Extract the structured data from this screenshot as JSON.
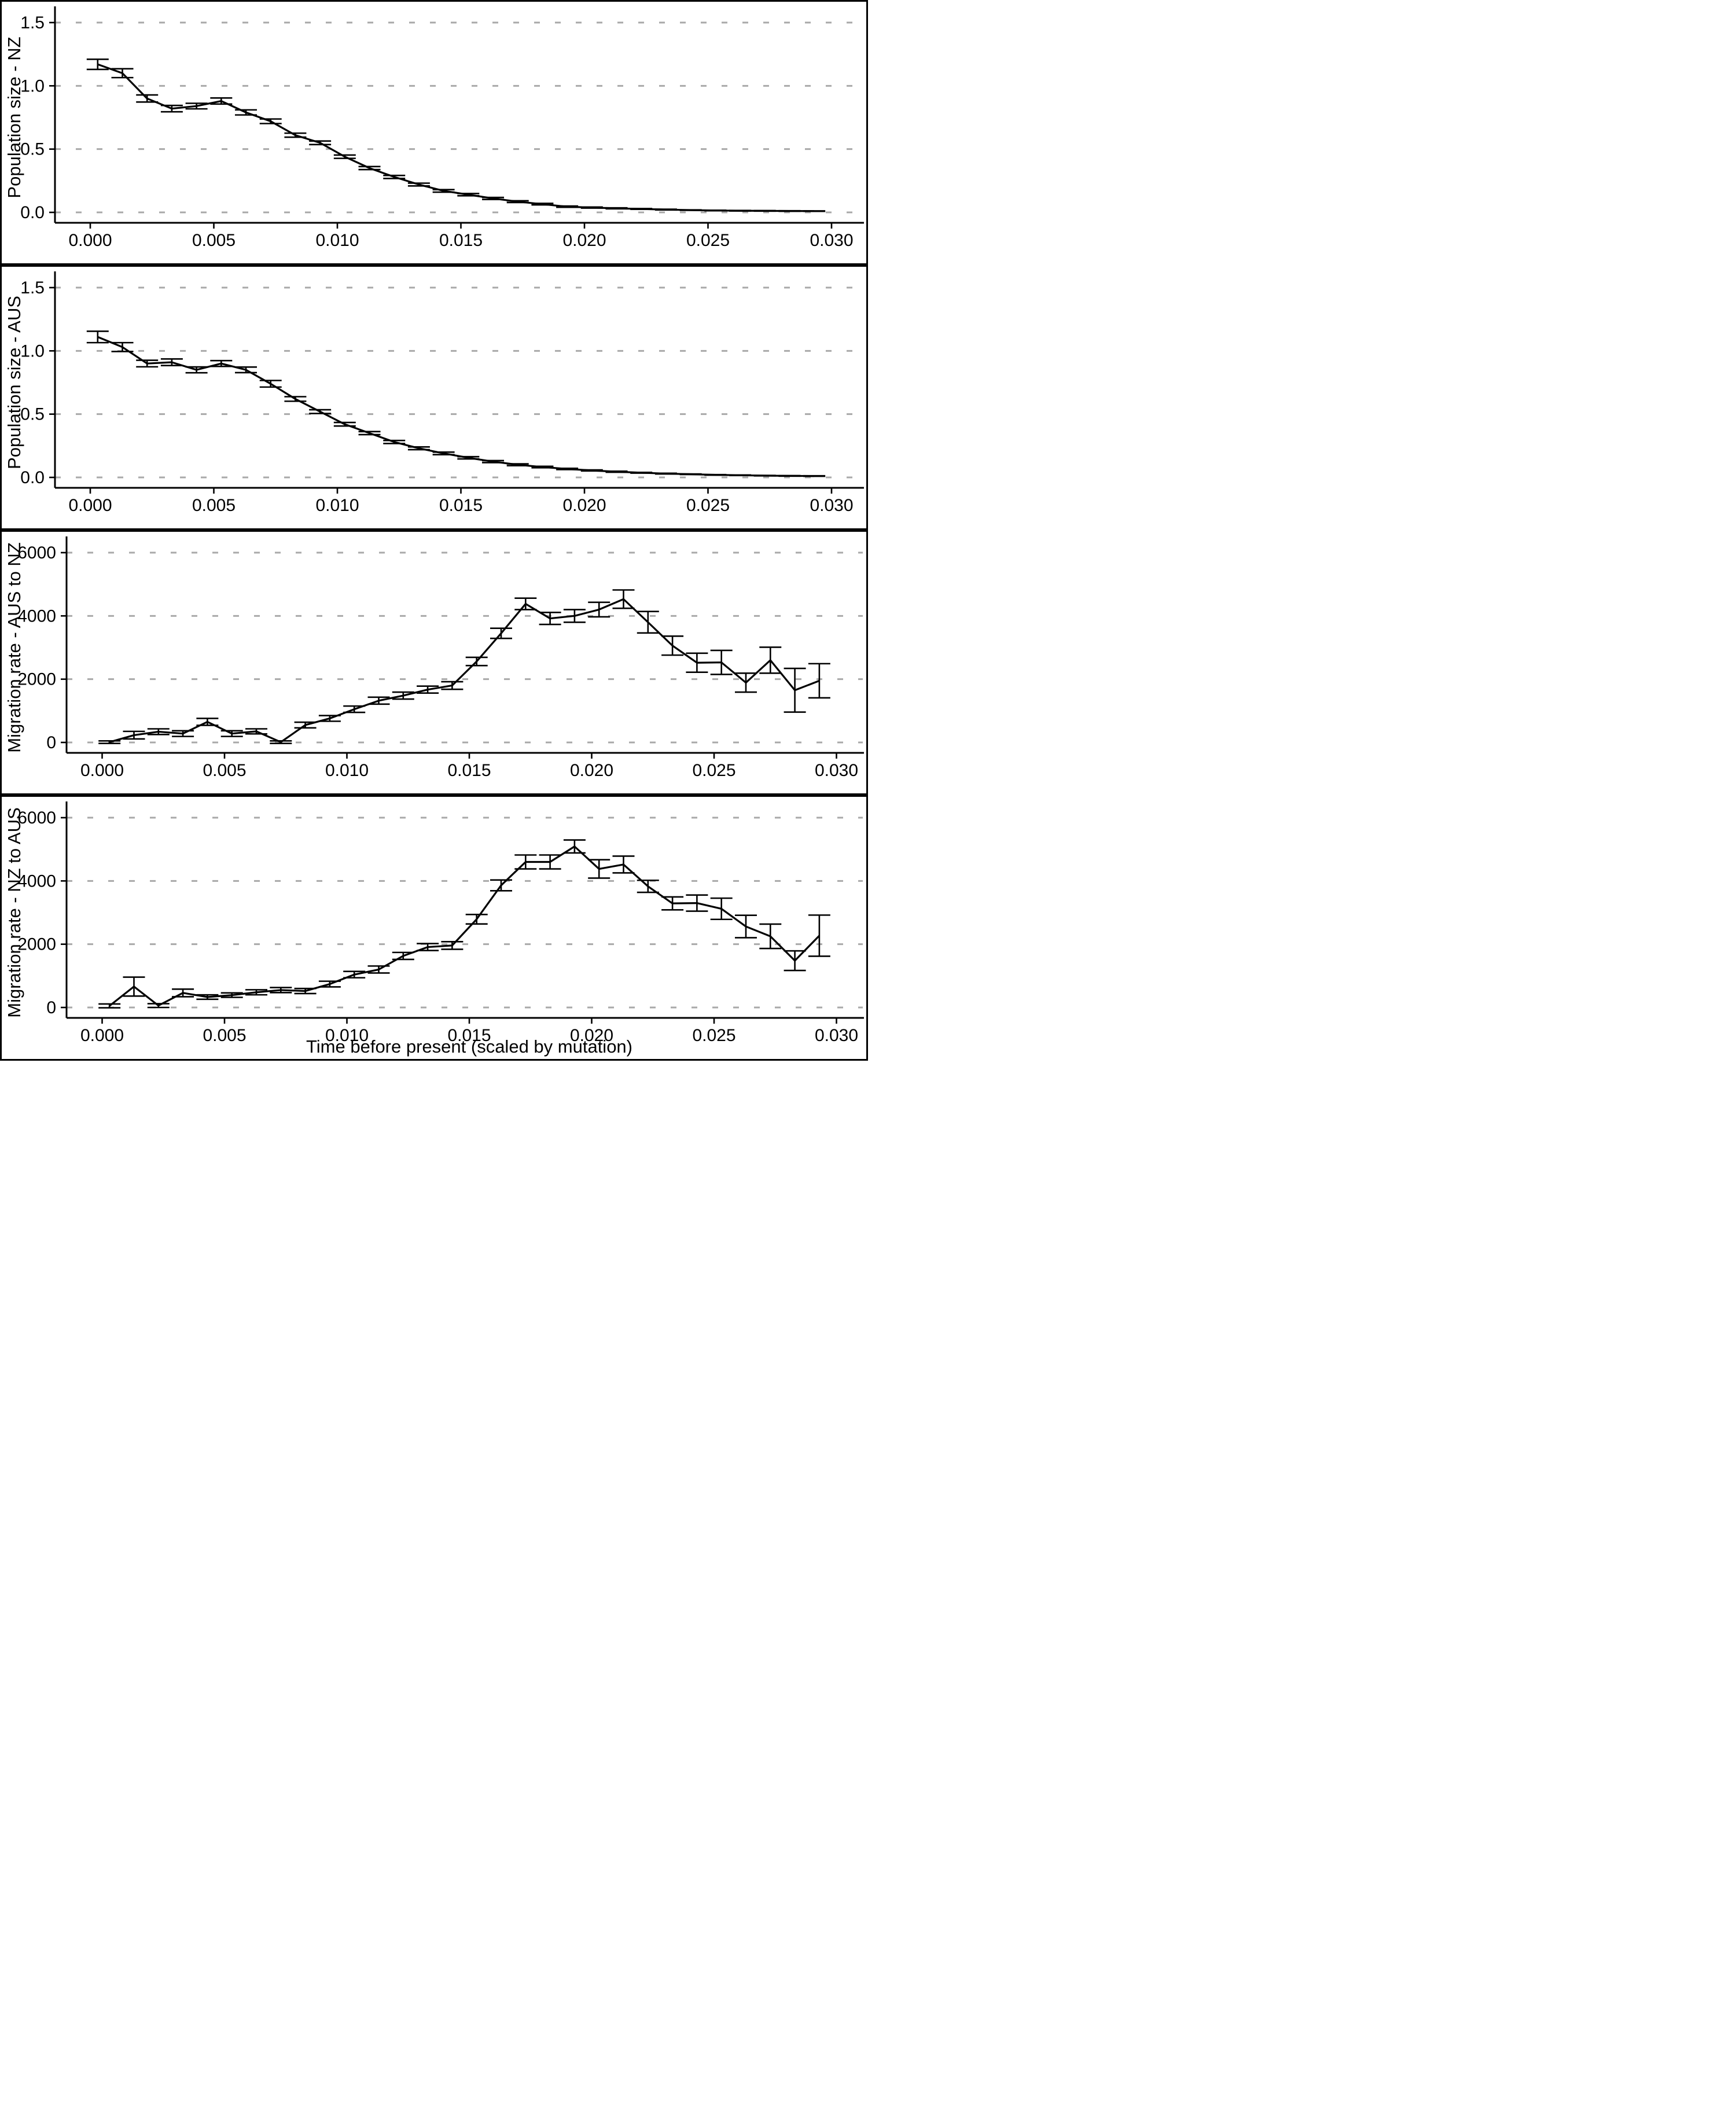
{
  "figure": {
    "kind": "four stacked line panels with error bars",
    "background": "#ffffff",
    "line_color": "#000000",
    "grid_color": "#a9a9a9",
    "text_color": "#000000",
    "x_axis_title": "Time before present (scaled by mutation)"
  },
  "chart_data": [
    {
      "type": "line",
      "panel": "population-size-nz",
      "title": "",
      "ylabel": "Population size - NZ",
      "xlabel": "",
      "ylim": [
        0,
        1.5
      ],
      "yticks": [
        0.0,
        0.5,
        1.0,
        1.5
      ],
      "ytick_labels": [
        "0.0",
        "0.5",
        "1.0",
        "1.5"
      ],
      "xlim": [
        0,
        0.03
      ],
      "xticks": [
        0.0,
        0.005,
        0.01,
        0.015,
        0.02,
        0.025,
        0.03
      ],
      "xtick_labels": [
        "0.000",
        "0.005",
        "0.010",
        "0.015",
        "0.020",
        "0.025",
        "0.030"
      ],
      "grid": "dotted-horizontal",
      "legend_position": "none",
      "x": [
        0.0003,
        0.0013,
        0.0023,
        0.0033,
        0.0043,
        0.0053,
        0.0063,
        0.0073,
        0.0083,
        0.0093,
        0.0103,
        0.0113,
        0.0123,
        0.0133,
        0.0143,
        0.0153,
        0.0163,
        0.0173,
        0.0183,
        0.0193,
        0.0203,
        0.0213,
        0.0223,
        0.0233,
        0.0243,
        0.0253,
        0.0263,
        0.0273,
        0.0283,
        0.0293
      ],
      "y": [
        1.17,
        1.1,
        0.9,
        0.82,
        0.84,
        0.88,
        0.79,
        0.72,
        0.61,
        0.55,
        0.44,
        0.35,
        0.28,
        0.22,
        0.17,
        0.14,
        0.11,
        0.085,
        0.065,
        0.045,
        0.038,
        0.032,
        0.027,
        0.022,
        0.018,
        0.015,
        0.013,
        0.012,
        0.011,
        0.01
      ],
      "err": [
        0.04,
        0.035,
        0.028,
        0.025,
        0.022,
        0.024,
        0.02,
        0.018,
        0.016,
        0.014,
        0.013,
        0.012,
        0.012,
        0.011,
        0.01,
        0.009,
        0.008,
        0.007,
        0.006,
        0.005,
        0.004,
        0.004,
        0.003,
        0.003,
        0.002,
        0.002,
        0.002,
        0.002,
        0.002,
        0.002
      ]
    },
    {
      "type": "line",
      "panel": "population-size-aus",
      "title": "",
      "ylabel": "Population size - AUS",
      "xlabel": "",
      "ylim": [
        0,
        1.5
      ],
      "yticks": [
        0.0,
        0.5,
        1.0,
        1.5
      ],
      "ytick_labels": [
        "0.0",
        "0.5",
        "1.0",
        "1.5"
      ],
      "xlim": [
        0,
        0.03
      ],
      "xticks": [
        0.0,
        0.005,
        0.01,
        0.015,
        0.02,
        0.025,
        0.03
      ],
      "xtick_labels": [
        "0.000",
        "0.005",
        "0.010",
        "0.015",
        "0.020",
        "0.025",
        "0.030"
      ],
      "grid": "dotted-horizontal",
      "legend_position": "none",
      "x": [
        0.0003,
        0.0013,
        0.0023,
        0.0033,
        0.0043,
        0.0053,
        0.0063,
        0.0073,
        0.0083,
        0.0093,
        0.0103,
        0.0113,
        0.0123,
        0.0133,
        0.0143,
        0.0153,
        0.0163,
        0.0173,
        0.0183,
        0.0193,
        0.0203,
        0.0213,
        0.0223,
        0.0233,
        0.0243,
        0.0253,
        0.0263,
        0.0273,
        0.0283,
        0.0293
      ],
      "y": [
        1.11,
        1.03,
        0.9,
        0.91,
        0.85,
        0.9,
        0.85,
        0.74,
        0.62,
        0.52,
        0.42,
        0.35,
        0.28,
        0.23,
        0.19,
        0.155,
        0.125,
        0.1,
        0.082,
        0.067,
        0.055,
        0.045,
        0.037,
        0.03,
        0.025,
        0.02,
        0.017,
        0.014,
        0.012,
        0.011
      ],
      "err": [
        0.045,
        0.035,
        0.026,
        0.026,
        0.023,
        0.023,
        0.022,
        0.026,
        0.018,
        0.015,
        0.014,
        0.012,
        0.012,
        0.011,
        0.01,
        0.009,
        0.008,
        0.007,
        0.006,
        0.005,
        0.004,
        0.004,
        0.003,
        0.003,
        0.002,
        0.002,
        0.002,
        0.002,
        0.002,
        0.002
      ]
    },
    {
      "type": "line",
      "panel": "migration-rate-aus-to-nz",
      "title": "",
      "ylabel": "Migration rate - AUS to NZ",
      "xlabel": "",
      "ylim": [
        0,
        6000
      ],
      "yticks": [
        0,
        2000,
        4000,
        6000
      ],
      "ytick_labels": [
        "0",
        "2000",
        "4000",
        "6000"
      ],
      "xlim": [
        0,
        0.03
      ],
      "xticks": [
        0.0,
        0.005,
        0.01,
        0.015,
        0.02,
        0.025,
        0.03
      ],
      "xtick_labels": [
        "0.000",
        "0.005",
        "0.010",
        "0.015",
        "0.020",
        "0.025",
        "0.030"
      ],
      "grid": "dotted-horizontal",
      "legend_position": "none",
      "x": [
        0.0003,
        0.0013,
        0.0023,
        0.0033,
        0.0043,
        0.0053,
        0.0063,
        0.0073,
        0.0083,
        0.0093,
        0.0103,
        0.0113,
        0.0123,
        0.0133,
        0.0143,
        0.0153,
        0.0163,
        0.0173,
        0.0183,
        0.0193,
        0.0203,
        0.0213,
        0.0223,
        0.0233,
        0.0243,
        0.0253,
        0.0263,
        0.0273,
        0.0283,
        0.0293
      ],
      "y": [
        10,
        230,
        340,
        280,
        650,
        280,
        350,
        10,
        550,
        760,
        1050,
        1320,
        1480,
        1670,
        1800,
        2560,
        3450,
        4380,
        3920,
        4000,
        4200,
        4530,
        3800,
        3060,
        2520,
        2530,
        1890,
        2600,
        1650,
        1950
      ],
      "err": [
        40,
        120,
        90,
        90,
        110,
        90,
        80,
        40,
        90,
        90,
        100,
        110,
        110,
        110,
        120,
        130,
        160,
        180,
        190,
        200,
        230,
        290,
        340,
        300,
        300,
        380,
        300,
        410,
        690,
        540
      ]
    },
    {
      "type": "line",
      "panel": "migration-rate-nz-to-aus",
      "title": "",
      "ylabel": "Migration rate - NZ to AUS",
      "xlabel": "Time before present (scaled by mutation)",
      "ylim": [
        0,
        6000
      ],
      "yticks": [
        0,
        2000,
        4000,
        6000
      ],
      "ytick_labels": [
        "0",
        "2000",
        "4000",
        "6000"
      ],
      "xlim": [
        0,
        0.03
      ],
      "xticks": [
        0.0,
        0.005,
        0.01,
        0.015,
        0.02,
        0.025,
        0.03
      ],
      "xtick_labels": [
        "0.000",
        "0.005",
        "0.010",
        "0.015",
        "0.020",
        "0.025",
        "0.030"
      ],
      "grid": "dotted-horizontal",
      "legend_position": "none",
      "x": [
        0.0003,
        0.0013,
        0.0023,
        0.0033,
        0.0043,
        0.0053,
        0.0063,
        0.0073,
        0.0083,
        0.0093,
        0.0103,
        0.0113,
        0.0123,
        0.0133,
        0.0143,
        0.0153,
        0.0163,
        0.0173,
        0.0183,
        0.0193,
        0.0203,
        0.0213,
        0.0223,
        0.0233,
        0.0243,
        0.0253,
        0.0263,
        0.0273,
        0.0283,
        0.0293
      ],
      "y": [
        50,
        660,
        60,
        460,
        330,
        390,
        480,
        550,
        520,
        740,
        1040,
        1200,
        1630,
        1910,
        1960,
        2790,
        3860,
        4600,
        4600,
        5090,
        4380,
        4520,
        3830,
        3290,
        3300,
        3120,
        2560,
        2250,
        1480,
        2270
      ],
      "err": [
        60,
        300,
        60,
        120,
        70,
        70,
        80,
        80,
        80,
        90,
        100,
        110,
        110,
        110,
        120,
        150,
        170,
        220,
        220,
        205,
        290,
        265,
        190,
        205,
        255,
        335,
        355,
        385,
        310,
        650
      ]
    }
  ]
}
